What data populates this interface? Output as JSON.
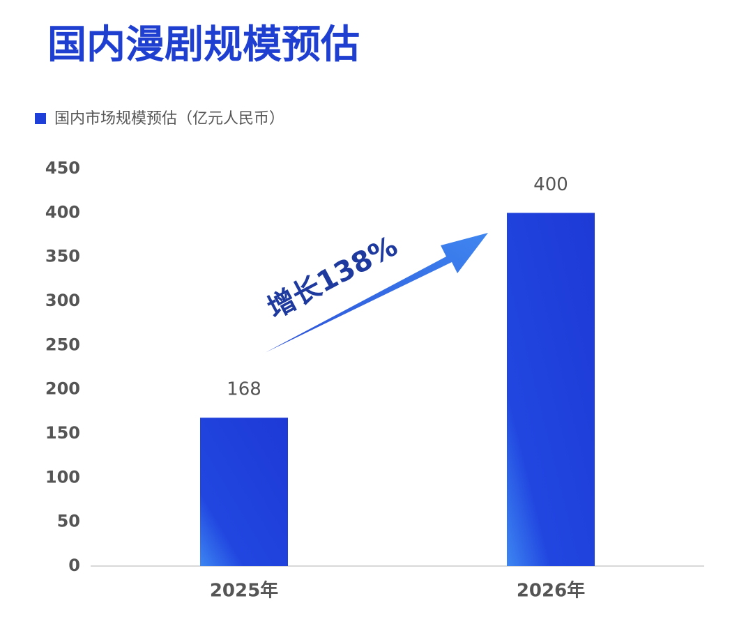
{
  "chart_data": {
    "type": "bar",
    "title": "国内漫剧规模预估",
    "series": [
      {
        "name": "国内市场规模预估（亿元人民币）",
        "color": "#1e3fd8",
        "values": [
          168,
          400
        ]
      }
    ],
    "categories": [
      "2025年",
      "2026年"
    ],
    "ylim": [
      0,
      450
    ],
    "yticks": [
      0,
      50,
      100,
      150,
      200,
      250,
      300,
      350,
      400,
      450
    ],
    "annotation": "增长138%"
  }
}
